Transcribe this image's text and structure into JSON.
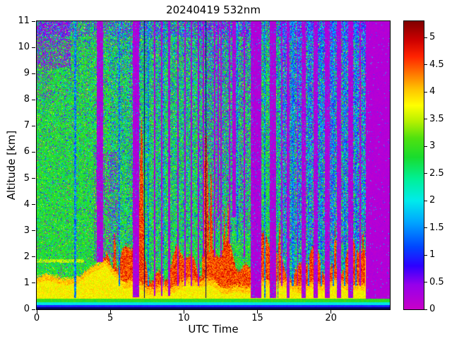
{
  "chart_data": {
    "type": "heatmap",
    "title": "20240419 532nm",
    "xlabel": "UTC Time",
    "ylabel": "Altitude [km]",
    "x_range": [
      0,
      24
    ],
    "y_range": [
      0,
      11
    ],
    "x_ticks": [
      0,
      5,
      10,
      15,
      20
    ],
    "y_ticks": [
      0,
      1,
      2,
      3,
      4,
      5,
      6,
      7,
      8,
      9,
      10,
      11
    ],
    "colorbar": {
      "range": [
        0,
        5.3
      ],
      "ticks": [
        "0",
        "0.5",
        "1",
        "1.5",
        "2",
        "2.5",
        "3",
        "3.5",
        "4",
        "4.5",
        "5"
      ],
      "stops": [
        [
          0.0,
          [
            200,
            0,
            200
          ]
        ],
        [
          0.45,
          [
            150,
            0,
            235
          ]
        ],
        [
          0.8,
          [
            45,
            0,
            255
          ]
        ],
        [
          1.15,
          [
            0,
            70,
            255
          ]
        ],
        [
          1.6,
          [
            0,
            165,
            255
          ]
        ],
        [
          2.0,
          [
            0,
            235,
            235
          ]
        ],
        [
          2.4,
          [
            0,
            240,
            150
          ]
        ],
        [
          2.8,
          [
            25,
            220,
            45
          ]
        ],
        [
          3.15,
          [
            80,
            225,
            15
          ]
        ],
        [
          3.45,
          [
            180,
            240,
            0
          ]
        ],
        [
          3.75,
          [
            255,
            255,
            0
          ]
        ],
        [
          4.05,
          [
            255,
            195,
            0
          ]
        ],
        [
          4.35,
          [
            255,
            115,
            0
          ]
        ],
        [
          4.65,
          [
            255,
            35,
            0
          ]
        ],
        [
          4.95,
          [
            205,
            0,
            0
          ]
        ],
        [
          5.3,
          [
            128,
            0,
            0
          ]
        ]
      ]
    },
    "features": [
      "Speckled green background (~3) above the boundary layer, noisier with altitude",
      "Yellow boundary-layer aerosol (~3.5-4) below ~1.5 km throughout the day",
      "Dark red cloud/aerosol layer (4.5-5.3) between ~1 and 3 km from ~05 to ~22 UTC",
      "Tall red plumes reaching ~7 km near 07 and 11.5 UTC",
      "Numerous vertical magenta/blue data-gap stripes, dense after 14 UTC",
      "Solid magenta no-data block after ~22.4 UTC",
      "Thin cyan near-surface line at ~0.2 km with dark blue below",
      "Magenta noise patch in upper-left corner above 9 km"
    ],
    "render": {
      "seed": 12345,
      "blank_after": 22.35,
      "dark_line_color": "#000070",
      "bands": [
        {
          "a": [
            0,
            0.09
          ],
          "color": "#000060"
        },
        {
          "a": [
            0.09,
            0.17
          ],
          "v": 0.95,
          "j": 0.2
        },
        {
          "a": [
            0.17,
            0.28
          ],
          "v": 2.0,
          "j": 0.25
        },
        {
          "a": [
            0.28,
            0.4
          ],
          "v": 2.95,
          "j": 0.35
        }
      ],
      "cloud": {
        "t0": 4.7,
        "t1": 22.33
      },
      "spikes": [
        {
          "t": 5.3,
          "w": 0.15,
          "top": 2.9
        },
        {
          "t": 7.12,
          "w": 0.18,
          "top": 7.3
        },
        {
          "t": 11.5,
          "w": 0.22,
          "top": 7.0
        },
        {
          "t": 11.85,
          "w": 0.12,
          "top": 5.3
        },
        {
          "t": 12.75,
          "w": 0.1,
          "top": 3.8
        },
        {
          "t": 13.0,
          "w": 0.1,
          "top": 4.2
        },
        {
          "t": 16.5,
          "w": 0.12,
          "top": 3.3
        },
        {
          "t": 20.28,
          "w": 0.1,
          "top": 3.2
        },
        {
          "t": 22.18,
          "w": 0.12,
          "top": 3.0
        }
      ],
      "gaps": [
        {
          "t": [
            2.55,
            2.68
          ],
          "k": "b"
        },
        {
          "t": [
            4.1,
            4.52
          ],
          "k": "p",
          "a0": 1.8
        },
        {
          "t": [
            5.55,
            5.65
          ],
          "k": "b",
          "a0": 0.9
        },
        {
          "t": [
            6.55,
            6.95
          ],
          "k": "p",
          "a0": 0.45
        },
        {
          "t": [
            7.32,
            7.36
          ],
          "k": "d"
        },
        {
          "t": [
            7.55,
            7.63
          ],
          "k": "b",
          "a0": 0.9
        },
        {
          "t": [
            7.97,
            8.08
          ],
          "k": "p",
          "a0": 0.5
        },
        {
          "t": [
            8.45,
            8.55
          ],
          "k": "p",
          "a0": 0.5
        },
        {
          "t": [
            8.6,
            8.65
          ],
          "k": "b",
          "a0": 0.9
        },
        {
          "t": [
            8.95,
            9.05
          ],
          "k": "p",
          "a0": 0.5
        },
        {
          "t": [
            9.1,
            9.14
          ],
          "k": "d"
        },
        {
          "t": [
            9.55,
            9.65
          ],
          "k": "p",
          "a0": 0.9
        },
        {
          "t": [
            10.05,
            10.15
          ],
          "k": "p",
          "a0": 0.9
        },
        {
          "t": [
            10.45,
            10.55
          ],
          "k": "p",
          "a0": 0.9
        },
        {
          "t": [
            10.95,
            11.05
          ],
          "k": "p",
          "a0": 0.9
        },
        {
          "t": [
            11.3,
            11.38
          ],
          "k": "p",
          "a0": 2.0
        },
        {
          "t": [
            11.48,
            11.52
          ],
          "k": "d"
        },
        {
          "t": [
            12.05,
            12.15
          ],
          "k": "p",
          "a0": 2.0
        },
        {
          "t": [
            12.3,
            12.4
          ],
          "k": "p",
          "a0": 3.5
        },
        {
          "t": [
            12.5,
            12.6
          ],
          "k": "p",
          "a0": 2.0
        },
        {
          "t": [
            13.05,
            13.15
          ],
          "k": "p",
          "a0": 2.5
        },
        {
          "t": [
            13.3,
            13.55
          ],
          "k": "p",
          "a0": 3.5
        },
        {
          "t": [
            13.6,
            13.7
          ],
          "k": "b",
          "a0": 2.5
        },
        {
          "t": [
            14.05,
            14.15
          ],
          "k": "p",
          "a0": 2.0
        },
        {
          "t": [
            14.55,
            15.25
          ],
          "k": "p"
        },
        {
          "t": [
            15.45,
            15.55
          ],
          "k": "b"
        },
        {
          "t": [
            15.85,
            16.28
          ],
          "k": "p"
        },
        {
          "t": [
            16.35,
            16.42
          ],
          "k": "b"
        },
        {
          "t": [
            16.6,
            16.7
          ],
          "k": "p",
          "a0": 0.9
        },
        {
          "t": [
            17.0,
            17.2
          ],
          "k": "p"
        },
        {
          "t": [
            17.35,
            17.45
          ],
          "k": "b",
          "a0": 0.9
        },
        {
          "t": [
            17.7,
            17.78
          ],
          "k": "p",
          "a0": 0.9
        },
        {
          "t": [
            18.0,
            18.3
          ],
          "k": "p"
        },
        {
          "t": [
            18.45,
            18.55
          ],
          "k": "b",
          "a0": 0.9
        },
        {
          "t": [
            18.8,
            19.1
          ],
          "k": "p"
        },
        {
          "t": [
            19.3,
            19.4
          ],
          "k": "b",
          "a0": 0.9
        },
        {
          "t": [
            19.6,
            19.9
          ],
          "k": "p"
        },
        {
          "t": [
            20.1,
            20.2
          ],
          "k": "b",
          "a0": 0.9
        },
        {
          "t": [
            20.38,
            20.7
          ],
          "k": "p"
        },
        {
          "t": [
            20.9,
            21.0
          ],
          "k": "b",
          "a0": 0.9
        },
        {
          "t": [
            21.15,
            21.5
          ],
          "k": "p"
        },
        {
          "t": [
            21.65,
            21.75
          ],
          "k": "b",
          "a0": 0.9
        },
        {
          "t": [
            21.95,
            22.05
          ],
          "k": "p",
          "a0": 0.9
        }
      ],
      "purple_regions": [
        {
          "t": [
            0,
            2.3
          ],
          "a": [
            9.2,
            11
          ],
          "p": 0.33
        },
        {
          "t": [
            0,
            1.0
          ],
          "a": [
            8.0,
            9.2
          ],
          "p": 0.12
        },
        {
          "t": [
            3.9,
            5.6
          ],
          "a": [
            1.8,
            6.0
          ],
          "p": 0.22
        },
        {
          "t": [
            11.0,
            14.5
          ],
          "a": [
            3.0,
            11
          ],
          "p": 0.15
        },
        {
          "t": [
            16.5,
            22.35
          ],
          "a": [
            2.5,
            11
          ],
          "p": 0.13
        },
        {
          "t": [
            6.3,
            7.0
          ],
          "a": [
            0.5,
            11
          ],
          "p": 0.1
        }
      ],
      "blue_regions": [
        {
          "t": [
            16.5,
            22.35
          ],
          "a": [
            0.42,
            11
          ],
          "p": 0.22
        },
        {
          "t": [
            5.0,
            14.5
          ],
          "a": [
            2.5,
            11
          ],
          "p": 0.1
        },
        {
          "t": [
            2.0,
            4.7
          ],
          "a": [
            2.0,
            11
          ],
          "p": 0.03
        }
      ]
    }
  }
}
